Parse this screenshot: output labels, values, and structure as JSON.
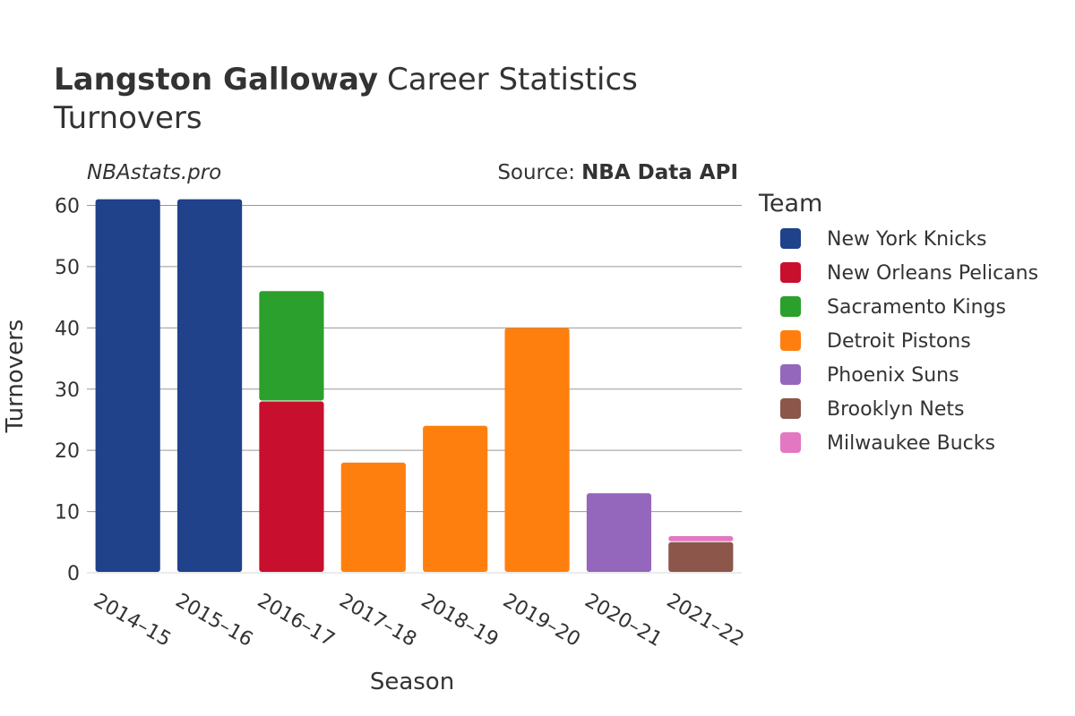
{
  "header": {
    "title_bold": "Langston Galloway",
    "title_rest": "Career Statistics",
    "subtitle": "Turnovers",
    "watermark": "NBAstats.pro",
    "source_label": "Source:",
    "source_name": "NBA Data API"
  },
  "legend": {
    "title": "Team"
  },
  "chart_data": {
    "type": "bar",
    "stacked": true,
    "xlabel": "Season",
    "ylabel": "Turnovers",
    "ylim": [
      0,
      63
    ],
    "yticks": [
      0,
      10,
      20,
      30,
      40,
      50,
      60
    ],
    "grid": true,
    "legend_position": "right",
    "categories": [
      "2014–15",
      "2015–16",
      "2016–17",
      "2017–18",
      "2018–19",
      "2019–20",
      "2020–21",
      "2021–22"
    ],
    "series": [
      {
        "name": "New York Knicks",
        "color": "#1f428a",
        "values": [
          61,
          61,
          0,
          0,
          0,
          0,
          0,
          0
        ]
      },
      {
        "name": "New Orleans Pelicans",
        "color": "#c8102e",
        "values": [
          0,
          0,
          28,
          0,
          0,
          0,
          0,
          0
        ]
      },
      {
        "name": "Sacramento Kings",
        "color": "#2ca02c",
        "values": [
          0,
          0,
          18,
          0,
          0,
          0,
          0,
          0
        ]
      },
      {
        "name": "Detroit Pistons",
        "color": "#ff7f0e",
        "values": [
          0,
          0,
          0,
          18,
          24,
          40,
          0,
          0
        ]
      },
      {
        "name": "Phoenix Suns",
        "color": "#9467bd",
        "values": [
          0,
          0,
          0,
          0,
          0,
          0,
          13,
          0
        ]
      },
      {
        "name": "Brooklyn Nets",
        "color": "#8c564b",
        "values": [
          0,
          0,
          0,
          0,
          0,
          0,
          0,
          5
        ]
      },
      {
        "name": "Milwaukee Bucks",
        "color": "#e377c2",
        "values": [
          0,
          0,
          0,
          0,
          0,
          0,
          0,
          1
        ]
      }
    ]
  }
}
